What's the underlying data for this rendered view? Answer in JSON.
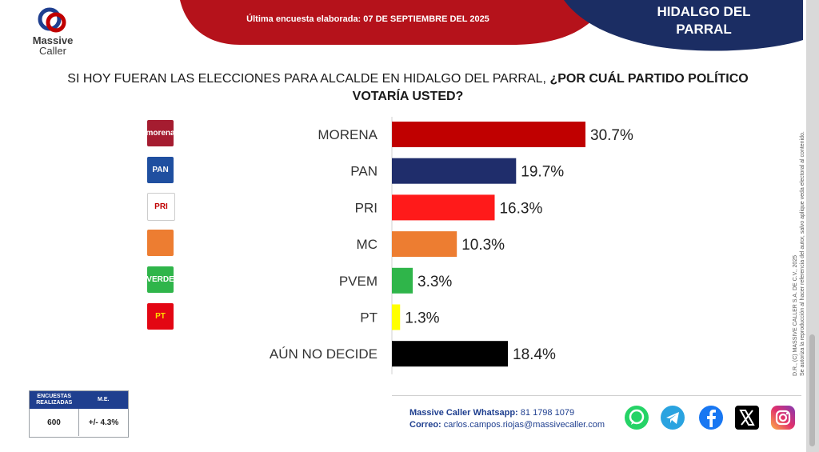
{
  "header": {
    "survey_date": "Última encuesta elaborada: 07 DE SEPTIEMBRE DEL 2025",
    "region": "HIDALGO DEL PARRAL",
    "brand_line1": "Massive",
    "brand_line2": "Caller"
  },
  "question": {
    "part1": "SI HOY FUERAN LAS ELECCIONES PARA ALCALDE EN HIDALGO DEL PARRAL,",
    "part2": "¿POR CUÁL PARTIDO POLÍTICO VOTARÍA USTED?"
  },
  "chart_data": {
    "type": "bar",
    "orientation": "horizontal",
    "title": "SI HOY FUERAN LAS ELECCIONES PARA ALCALDE EN HIDALGO DEL PARRAL, ¿POR CUÁL PARTIDO POLÍTICO VOTARÍA USTED?",
    "categories": [
      "MORENA",
      "PAN",
      "PRI",
      "MC",
      "PVEM",
      "PT",
      "AÚN NO DECIDE"
    ],
    "values": [
      30.7,
      19.7,
      16.3,
      10.3,
      3.3,
      1.3,
      18.4
    ],
    "value_labels": [
      "30.7%",
      "19.7%",
      "16.3%",
      "10.3%",
      "3.3%",
      "1.3%",
      "18.4%"
    ],
    "colors": [
      "#c00000",
      "#1f2d6b",
      "#ff1a1a",
      "#ed7d31",
      "#2fb54a",
      "#ffff00",
      "#000000"
    ],
    "xlim": [
      0,
      40
    ],
    "grid": false,
    "legend": "none"
  },
  "party_logos": [
    {
      "name": "morena-logo",
      "text": "morena",
      "bg": "#a51c30",
      "fg": "#ffffff"
    },
    {
      "name": "pan-logo",
      "text": "PAN",
      "bg": "#1f4fa0",
      "fg": "#ffffff"
    },
    {
      "name": "pri-logo",
      "text": "PRI",
      "bg": "#ffffff",
      "fg": "#c00000"
    },
    {
      "name": "mc-logo",
      "text": "",
      "bg": "#ed7d31",
      "fg": "#ffffff"
    },
    {
      "name": "pvem-logo",
      "text": "VERDE",
      "bg": "#2fb54a",
      "fg": "#ffffff"
    },
    {
      "name": "pt-logo",
      "text": "PT",
      "bg": "#e30613",
      "fg": "#ffdd00"
    }
  ],
  "side_note": {
    "line1": "D.R., (C) MASSIVE CALLER S.A. DE C.V., 2025",
    "line2": "Se autoriza la reproducción al hacer referencia del autor, salvo aplique veda electoral al contenido."
  },
  "stats": {
    "head_surveys": "ENCUESTAS REALIZADAS",
    "head_me": "M.E.",
    "surveys": "600",
    "me": "+/- 4.3%"
  },
  "contact": {
    "whatsapp_label": "Massive Caller Whatsapp:",
    "whatsapp_value": "81 1798 1079",
    "email_label": "Correo:",
    "email_value": "carlos.campos.riojas@massivecaller.com"
  },
  "social_icons": [
    "whatsapp-icon",
    "telegram-icon",
    "facebook-icon",
    "x-icon",
    "instagram-icon"
  ],
  "colors": {
    "banner_red": "#b5121b",
    "banner_navy": "#1b2d63",
    "brand_blue": "#1f3f8f"
  }
}
